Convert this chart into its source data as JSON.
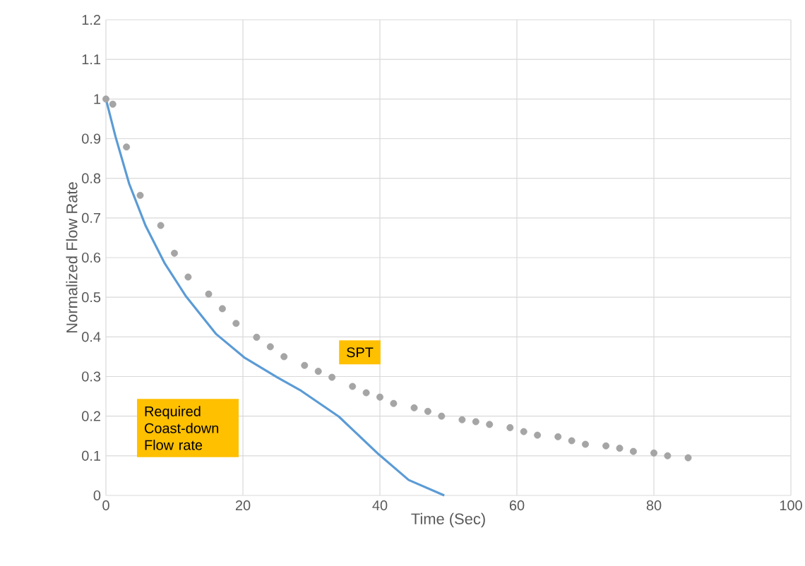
{
  "chart_data": {
    "type": "line",
    "xlabel": "Time (Sec)",
    "ylabel": "Normalized Flow Rate",
    "xlim": [
      0,
      100
    ],
    "xticks": [
      0,
      20,
      40,
      60,
      80,
      100
    ],
    "ylim": [
      0,
      1.2
    ],
    "yticks": [
      0,
      0.1,
      0.2,
      0.3,
      0.4,
      0.5,
      0.6,
      0.7,
      0.8,
      0.9,
      1,
      1.1,
      1.2
    ],
    "grid": true,
    "marker": "circle",
    "series": [
      {
        "marker": "none",
        "color": "#5b9bd5",
        "x": [
          0,
          1.4,
          3.4,
          5.8,
          8.6,
          11.7,
          16.1,
          20.2,
          25,
          28.5,
          34,
          39.8,
          44.2,
          49.4
        ],
        "values": [
          1.0,
          0.905,
          0.786,
          0.68,
          0.585,
          0.502,
          0.407,
          0.348,
          0.298,
          0.264,
          0.199,
          0.104,
          0.039,
          0
        ]
      },
      {
        "type": "scatter",
        "color": "#a5a5a5",
        "x": [
          0,
          1,
          3,
          5,
          8,
          10,
          12,
          15,
          17,
          19,
          22,
          24,
          26,
          29,
          31,
          33,
          36,
          38,
          40,
          42,
          45,
          47,
          49,
          52,
          54,
          56,
          59,
          61,
          63,
          66,
          68,
          70,
          73,
          75,
          77,
          80,
          82,
          85
        ],
        "values": [
          1.0,
          0.987,
          0.879,
          0.757,
          0.681,
          0.611,
          0.551,
          0.508,
          0.471,
          0.434,
          0.399,
          0.375,
          0.35,
          0.328,
          0.313,
          0.298,
          0.275,
          0.259,
          0.248,
          0.232,
          0.221,
          0.212,
          0.2,
          0.191,
          0.186,
          0.179,
          0.171,
          0.161,
          0.152,
          0.148,
          0.138,
          0.129,
          0.125,
          0.119,
          0.111,
          0.107,
          0.1,
          0.095
        ]
      }
    ],
    "annotations": [
      "Required Coast-down Flow rate",
      "SPT"
    ]
  }
}
